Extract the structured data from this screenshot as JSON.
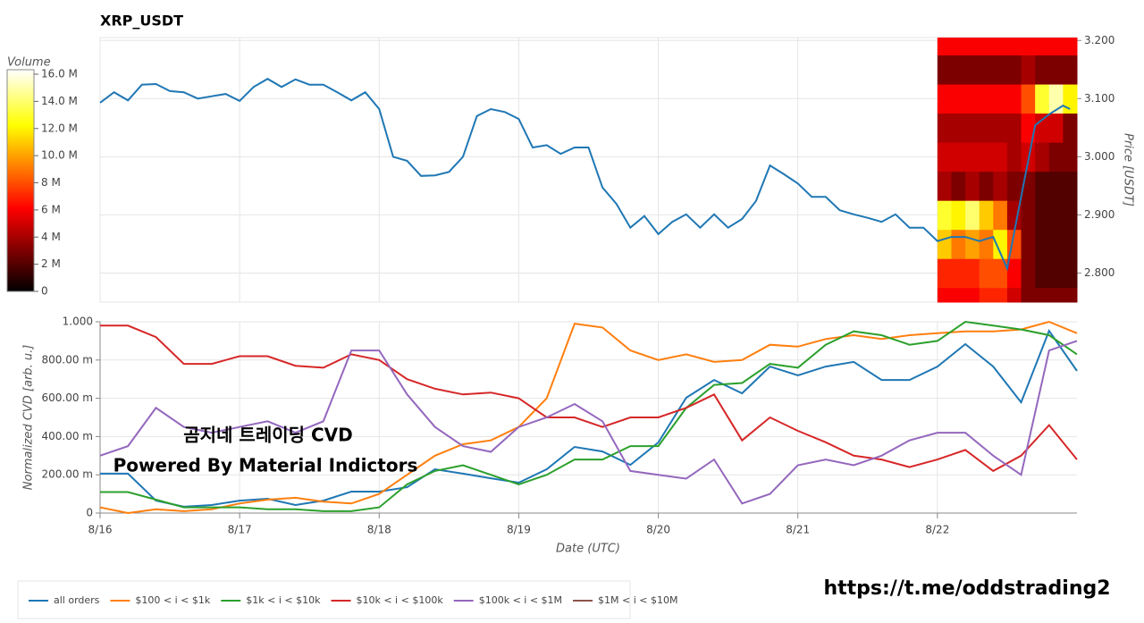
{
  "chart_data": [
    {
      "type": "line",
      "title": "XRP_USDT",
      "ylabel": "Price [USDT]",
      "xlim": [
        0,
        7
      ],
      "ylim": [
        2.75,
        3.205
      ],
      "grid": true,
      "yticks": [
        {
          "value": 2.8,
          "label": "2.800"
        },
        {
          "value": 2.9,
          "label": "2.900"
        },
        {
          "value": 3.0,
          "label": "3.000"
        },
        {
          "value": 3.1,
          "label": "3.100"
        },
        {
          "value": 3.2,
          "label": "3.200"
        }
      ],
      "series": [
        {
          "color": "#1f77b4",
          "x": [
            0,
            0.1,
            0.2,
            0.3,
            0.4,
            0.5,
            0.6,
            0.7,
            0.8,
            0.9,
            1.0,
            1.1,
            1.2,
            1.3,
            1.4,
            1.5,
            1.6,
            1.7,
            1.8,
            1.9,
            2.0,
            2.1,
            2.2,
            2.3,
            2.4,
            2.5,
            2.6,
            2.7,
            2.8,
            2.9,
            3.0,
            3.1,
            3.2,
            3.3,
            3.4,
            3.5,
            3.6,
            3.7,
            3.8,
            3.9,
            4.0,
            4.1,
            4.2,
            4.3,
            4.4,
            4.5,
            4.6,
            4.7,
            4.8,
            4.9,
            5.0,
            5.1,
            5.2,
            5.3,
            5.4,
            5.5,
            5.6,
            5.7,
            5.8,
            5.9,
            6.0,
            6.1,
            6.2,
            6.3,
            6.4,
            6.5,
            6.6,
            6.7,
            6.8,
            6.9,
            6.95
          ],
          "values": [
            3.093,
            3.111,
            3.097,
            3.124,
            3.125,
            3.113,
            3.111,
            3.1,
            3.104,
            3.108,
            3.096,
            3.12,
            3.134,
            3.12,
            3.133,
            3.124,
            3.124,
            3.111,
            3.097,
            3.111,
            3.082,
            3.0,
            2.993,
            2.967,
            2.968,
            2.974,
            3.0,
            3.07,
            3.082,
            3.077,
            3.065,
            3.016,
            3.02,
            3.005,
            3.016,
            3.016,
            2.947,
            2.919,
            2.878,
            2.898,
            2.867,
            2.888,
            2.901,
            2.878,
            2.901,
            2.878,
            2.893,
            2.924,
            2.985,
            2.97,
            2.954,
            2.931,
            2.931,
            2.908,
            2.901,
            2.895,
            2.888,
            2.901,
            2.878,
            2.878,
            2.855,
            2.862,
            2.862,
            2.855,
            2.862,
            2.808,
            2.931,
            3.054,
            3.073,
            3.088,
            3.082
          ]
        }
      ],
      "heatmap": {
        "x": [
          6.0,
          6.1,
          6.2,
          6.3,
          6.4,
          6.5,
          6.6,
          6.7,
          6.8,
          6.9,
          7.0
        ],
        "y": [
          2.75,
          2.775,
          2.825,
          2.875,
          2.925,
          2.975,
          3.025,
          3.075,
          3.125,
          3.175,
          3.205
        ],
        "zlim": [
          0,
          16330000
        ],
        "values": [
          [
            6000000,
            6000000,
            6000000,
            7000000,
            7000000,
            5000000,
            3000000,
            3000000,
            3000000,
            3000000
          ],
          [
            7000000,
            7000000,
            7000000,
            8000000,
            8000000,
            6000000,
            3000000,
            2000000,
            2000000,
            2000000
          ],
          [
            11000000,
            9000000,
            10000000,
            9000000,
            12000000,
            8000000,
            3000000,
            2000000,
            2000000,
            2000000
          ],
          [
            13000000,
            12000000,
            14000000,
            11000000,
            9000000,
            4000000,
            3000000,
            2000000,
            2000000,
            2000000
          ],
          [
            4000000,
            3000000,
            4000000,
            3000000,
            4000000,
            3000000,
            3000000,
            2000000,
            2000000,
            2000000
          ],
          [
            5000000,
            5000000,
            5000000,
            5000000,
            5000000,
            4000000,
            5000000,
            4000000,
            3000000,
            3000000
          ],
          [
            4000000,
            4000000,
            4000000,
            4000000,
            4000000,
            4000000,
            6000000,
            5000000,
            5000000,
            3000000
          ],
          [
            6000000,
            6000000,
            6000000,
            6000000,
            6000000,
            6000000,
            8000000,
            13000000,
            15000000,
            12000000
          ],
          [
            3000000,
            3000000,
            3000000,
            3000000,
            3000000,
            3000000,
            4000000,
            3000000,
            3000000,
            3000000
          ],
          [
            6000000,
            6000000,
            6000000,
            6000000,
            6000000,
            6000000,
            6000000,
            6000000,
            6000000,
            6000000
          ]
        ],
        "colorbar": {
          "label": "Volume",
          "ticks": [
            0,
            {
              "value": 2000000,
              "label": "2 M"
            },
            {
              "value": 4000000,
              "label": "4 M"
            },
            {
              "value": 6000000,
              "label": "6 M"
            },
            {
              "value": 8000000,
              "label": "8 M"
            },
            {
              "value": 10000000,
              "label": "10.0 M"
            },
            {
              "value": 12000000,
              "label": "12.0 M"
            },
            {
              "value": 14000000,
              "label": "14.0 M"
            },
            {
              "value": 16000000,
              "label": "16.0 M"
            }
          ]
        }
      }
    },
    {
      "type": "line",
      "xlabel": "Date (UTC)",
      "ylabel": "Normalized CVD [arb. u.]",
      "xlim": [
        0,
        7
      ],
      "ylim": [
        0,
        1
      ],
      "grid": true,
      "xticks": [
        {
          "value": 0,
          "label": "8/16"
        },
        {
          "value": 1,
          "label": "8/17"
        },
        {
          "value": 2,
          "label": "8/18"
        },
        {
          "value": 3,
          "label": "8/19"
        },
        {
          "value": 4,
          "label": "8/20"
        },
        {
          "value": 5,
          "label": "8/21"
        },
        {
          "value": 6,
          "label": "8/22"
        }
      ],
      "yticks": [
        0,
        {
          "value": 0.2,
          "label": "200.00 m"
        },
        {
          "value": 0.4,
          "label": "400.00 m"
        },
        {
          "value": 0.6,
          "label": "600.00 m"
        },
        {
          "value": 0.8,
          "label": "800.00 m"
        },
        {
          "value": 1,
          "label": "1.000"
        }
      ],
      "x": [
        0,
        0.2,
        0.4,
        0.6,
        0.8,
        1.0,
        1.2,
        1.4,
        1.6,
        1.8,
        2.0,
        2.2,
        2.4,
        2.6,
        2.8,
        3.0,
        3.2,
        3.4,
        3.6,
        3.8,
        4.0,
        4.2,
        4.4,
        4.6,
        4.8,
        5.0,
        5.2,
        5.4,
        5.6,
        5.8,
        6.0,
        6.2,
        6.4,
        6.6,
        6.8,
        7.0
      ],
      "series": [
        {
          "name": "all orders",
          "color": "#1f77b4",
          "values": [
            0.206,
            0.206,
            0.065,
            0.033,
            0.042,
            0.065,
            0.075,
            0.042,
            0.065,
            0.112,
            0.112,
            0.135,
            0.229,
            0.206,
            0.182,
            0.159,
            0.229,
            0.346,
            0.322,
            0.252,
            0.369,
            0.603,
            0.696,
            0.626,
            0.766,
            0.72,
            0.766,
            0.79,
            0.696,
            0.696,
            0.766,
            0.883,
            0.766,
            0.579,
            0.953,
            0.743
          ]
        },
        {
          "name": "$100 < i < $1k",
          "color": "#ff7f0e",
          "values": [
            0.03,
            0,
            0.02,
            0.01,
            0.02,
            0.05,
            0.07,
            0.08,
            0.06,
            0.05,
            0.1,
            0.2,
            0.3,
            0.36,
            0.38,
            0.45,
            0.6,
            0.99,
            0.97,
            0.85,
            0.8,
            0.83,
            0.79,
            0.8,
            0.88,
            0.87,
            0.91,
            0.93,
            0.91,
            0.93,
            0.94,
            0.95,
            0.95,
            0.96,
            1.0,
            0.94
          ]
        },
        {
          "name": "$1k < i < $10k",
          "color": "#2ca02c",
          "values": [
            0.11,
            0.11,
            0.07,
            0.03,
            0.03,
            0.03,
            0.02,
            0.02,
            0.01,
            0.01,
            0.03,
            0.15,
            0.22,
            0.25,
            0.2,
            0.15,
            0.2,
            0.28,
            0.28,
            0.35,
            0.35,
            0.55,
            0.67,
            0.68,
            0.78,
            0.76,
            0.88,
            0.95,
            0.93,
            0.88,
            0.9,
            1.0,
            0.98,
            0.96,
            0.93,
            0.83
          ]
        },
        {
          "name": "$10k < i < $100k",
          "color": "#d62728",
          "values": [
            0.98,
            0.98,
            0.92,
            0.78,
            0.78,
            0.82,
            0.82,
            0.77,
            0.76,
            0.83,
            0.8,
            0.7,
            0.65,
            0.62,
            0.63,
            0.6,
            0.5,
            0.5,
            0.45,
            0.5,
            0.5,
            0.55,
            0.62,
            0.38,
            0.5,
            0.43,
            0.37,
            0.3,
            0.28,
            0.24,
            0.28,
            0.33,
            0.22,
            0.3,
            0.46,
            0.28
          ]
        },
        {
          "name": "$100k < i < $1M",
          "color": "#9467bd",
          "values": [
            0.3,
            0.35,
            0.55,
            0.45,
            0.42,
            0.45,
            0.48,
            0.42,
            0.48,
            0.85,
            0.85,
            0.62,
            0.45,
            0.35,
            0.32,
            0.45,
            0.5,
            0.57,
            0.48,
            0.22,
            0.2,
            0.18,
            0.28,
            0.05,
            0.1,
            0.25,
            0.28,
            0.25,
            0.3,
            0.38,
            0.42,
            0.42,
            0.3,
            0.2,
            0.85,
            0.9
          ]
        },
        {
          "name": "$1M < i < $10M",
          "color": "#8c564b",
          "values": [
            null,
            null,
            null,
            null,
            null,
            null,
            null,
            null,
            null,
            null,
            null,
            null,
            null,
            null,
            null,
            null,
            null,
            null,
            null,
            null,
            null,
            null,
            null,
            null,
            null,
            null,
            null,
            null,
            null,
            null,
            null,
            null,
            null,
            null,
            null,
            null
          ]
        }
      ]
    }
  ],
  "annotations": [
    "곰지네 트레이딩 CVD",
    "Powered By Material Indictors",
    "https://t.me/oddstrading2"
  ]
}
